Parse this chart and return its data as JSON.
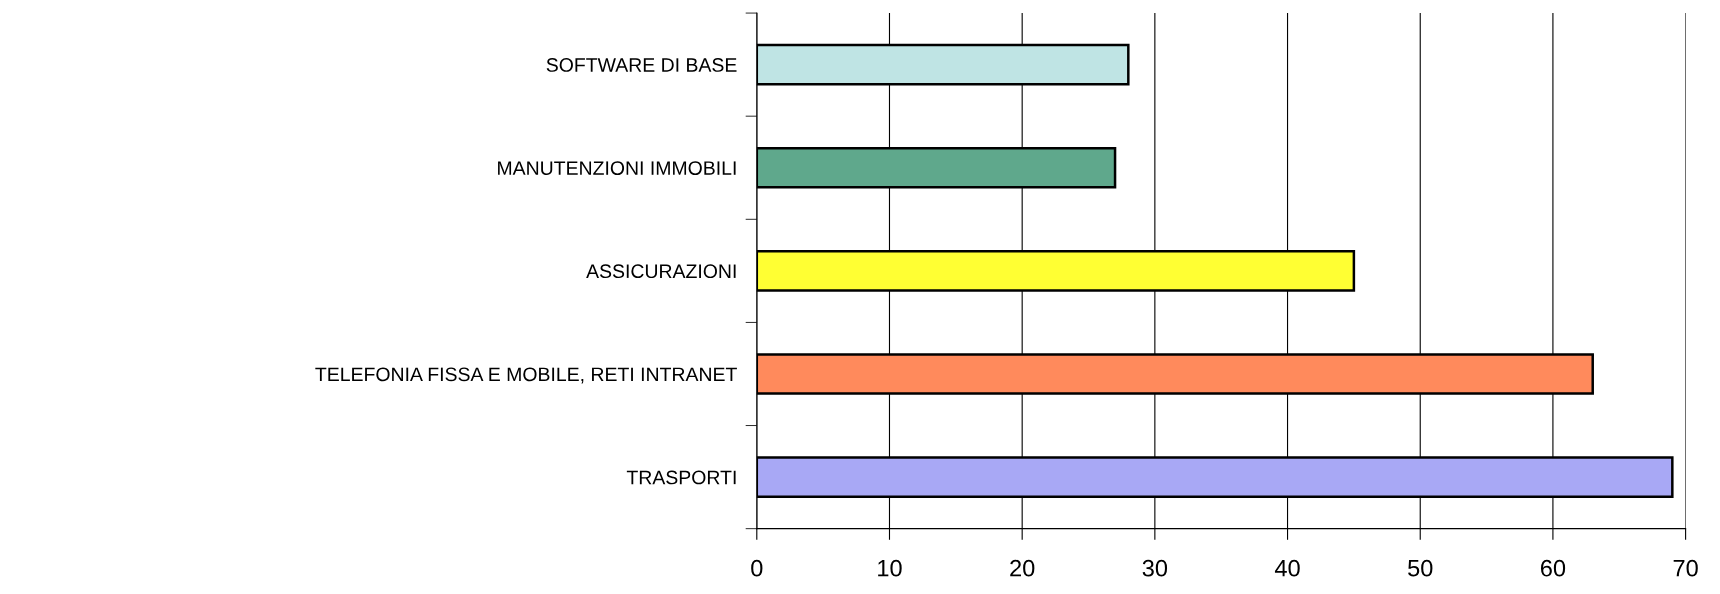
{
  "chart_data": {
    "type": "bar",
    "orientation": "horizontal",
    "categories": [
      "SOFTWARE DI BASE",
      "MANUTENZIONI IMMOBILI",
      "ASSICURAZIONI",
      "TELEFONIA FISSA E MOBILE, RETI INTRANET",
      "TRASPORTI"
    ],
    "values": [
      28,
      27,
      45,
      63,
      69
    ],
    "colors": [
      "#bfe4e4",
      "#5fa88c",
      "#ffff33",
      "#ff8a5c",
      "#a8a8f5"
    ],
    "xlim": [
      0,
      70
    ],
    "xticks": [
      0,
      10,
      20,
      30,
      40,
      50,
      60,
      70
    ],
    "grid": "x"
  }
}
